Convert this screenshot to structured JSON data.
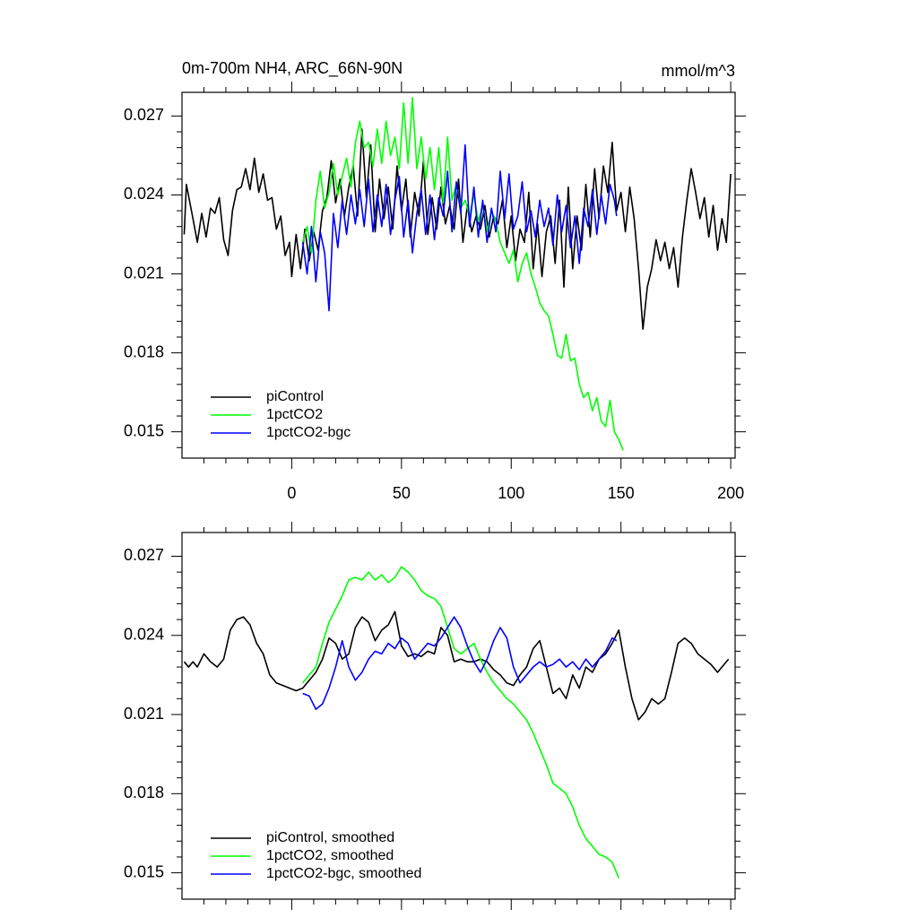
{
  "chart_data": [
    {
      "type": "line",
      "title": "0m-700m NH4, ARC_66N-90N",
      "units": "mmol/m^3",
      "xlim": [
        -50,
        202
      ],
      "xticks": [
        0,
        50,
        100,
        150,
        200
      ],
      "ylim": [
        0.014,
        0.0279
      ],
      "yticks": [
        0.015,
        0.018,
        0.021,
        0.024,
        0.027
      ],
      "legend": "lower left",
      "series": [
        {
          "name": "piControl",
          "color": "#000000",
          "x": [
            -49,
            -48,
            -45,
            -43,
            -41,
            -39,
            -37,
            -35,
            -33,
            -31,
            -29,
            -27,
            -25,
            -23,
            -21,
            -19,
            -17,
            -15,
            -13,
            -11,
            -9,
            -7,
            -5,
            -3,
            -1,
            0,
            2,
            4,
            6,
            8,
            10,
            12,
            14,
            16,
            18,
            20,
            22,
            24,
            26,
            28,
            30,
            32,
            34,
            36,
            38,
            40,
            42,
            44,
            46,
            48,
            50,
            52,
            54,
            56,
            58,
            60,
            62,
            64,
            66,
            68,
            70,
            72,
            74,
            76,
            78,
            80,
            82,
            84,
            86,
            88,
            90,
            92,
            94,
            96,
            98,
            100,
            102,
            104,
            106,
            108,
            110,
            112,
            114,
            116,
            118,
            120,
            122,
            124,
            126,
            128,
            130,
            132,
            134,
            136,
            138,
            140,
            142,
            144,
            146,
            148,
            150,
            152,
            154,
            156,
            158,
            160,
            162,
            164,
            166,
            168,
            170,
            172,
            174,
            176,
            178,
            180,
            182,
            184,
            186,
            188,
            190,
            192,
            194,
            196,
            198,
            200
          ],
          "values": [
            0.0225,
            0.0244,
            0.0231,
            0.0222,
            0.0233,
            0.0224,
            0.0235,
            0.0233,
            0.0239,
            0.0223,
            0.0217,
            0.0234,
            0.0242,
            0.0243,
            0.025,
            0.0242,
            0.0254,
            0.0241,
            0.0248,
            0.0238,
            0.0239,
            0.0227,
            0.0232,
            0.0217,
            0.0222,
            0.0209,
            0.0225,
            0.0212,
            0.0227,
            0.0215,
            0.0226,
            0.0219,
            0.0234,
            0.0239,
            0.0253,
            0.0237,
            0.0246,
            0.0232,
            0.0243,
            0.0251,
            0.0232,
            0.0265,
            0.0239,
            0.0259,
            0.0226,
            0.0246,
            0.0231,
            0.0243,
            0.0227,
            0.0251,
            0.0234,
            0.0246,
            0.0224,
            0.0241,
            0.0232,
            0.0253,
            0.0225,
            0.0239,
            0.0227,
            0.0243,
            0.0229,
            0.0236,
            0.0227,
            0.0246,
            0.0222,
            0.0236,
            0.0226,
            0.0232,
            0.0227,
            0.0236,
            0.0224,
            0.0232,
            0.0229,
            0.0238,
            0.022,
            0.0232,
            0.0215,
            0.0227,
            0.0222,
            0.0241,
            0.0212,
            0.0229,
            0.0209,
            0.0226,
            0.0232,
            0.0214,
            0.0238,
            0.0205,
            0.0243,
            0.0212,
            0.0232,
            0.0219,
            0.0244,
            0.0224,
            0.025,
            0.0231,
            0.0251,
            0.0241,
            0.026,
            0.0234,
            0.0241,
            0.0226,
            0.0243,
            0.0231,
            0.0212,
            0.0189,
            0.0205,
            0.0212,
            0.0223,
            0.0215,
            0.0222,
            0.0212,
            0.022,
            0.0205,
            0.0224,
            0.0238,
            0.025,
            0.0241,
            0.0231,
            0.0239,
            0.0224,
            0.0236,
            0.0219,
            0.0231,
            0.0222,
            0.0248
          ]
        },
        {
          "name": "1pctCO2",
          "color": "#00ff00",
          "x": [
            5,
            7,
            9,
            11,
            13,
            15,
            17,
            19,
            21,
            23,
            25,
            27,
            29,
            31,
            33,
            35,
            37,
            39,
            41,
            43,
            45,
            47,
            49,
            51,
            53,
            55,
            57,
            59,
            61,
            63,
            65,
            67,
            69,
            71,
            73,
            75,
            77,
            79,
            81,
            83,
            85,
            87,
            89,
            91,
            93,
            95,
            97,
            99,
            101,
            103,
            105,
            107,
            109,
            111,
            113,
            115,
            117,
            119,
            121,
            123,
            125,
            127,
            129,
            131,
            133,
            135,
            137,
            139,
            141,
            143,
            145,
            147,
            149,
            151
          ],
          "values": [
            0.0222,
            0.0228,
            0.0218,
            0.0238,
            0.0249,
            0.0235,
            0.0241,
            0.0252,
            0.024,
            0.0247,
            0.0254,
            0.0243,
            0.026,
            0.0268,
            0.0258,
            0.026,
            0.0251,
            0.0265,
            0.0252,
            0.0268,
            0.0255,
            0.0262,
            0.025,
            0.0275,
            0.0252,
            0.0277,
            0.025,
            0.0262,
            0.0246,
            0.0258,
            0.0242,
            0.0258,
            0.0237,
            0.0262,
            0.0238,
            0.0244,
            0.0235,
            0.0238,
            0.0232,
            0.024,
            0.023,
            0.0236,
            0.0226,
            0.0234,
            0.023,
            0.0222,
            0.0218,
            0.0214,
            0.0219,
            0.0207,
            0.0214,
            0.0218,
            0.021,
            0.0205,
            0.0199,
            0.0196,
            0.0194,
            0.0187,
            0.0179,
            0.0178,
            0.0187,
            0.0177,
            0.0178,
            0.0168,
            0.0163,
            0.0165,
            0.0158,
            0.0163,
            0.0154,
            0.0152,
            0.0162,
            0.015,
            0.0147,
            0.0143
          ]
        },
        {
          "name": "1pctCO2-bgc",
          "color": "#0000ff",
          "x": [
            5,
            7,
            9,
            11,
            13,
            15,
            17,
            19,
            21,
            23,
            25,
            27,
            29,
            31,
            33,
            35,
            37,
            39,
            41,
            43,
            45,
            47,
            49,
            51,
            53,
            55,
            57,
            59,
            61,
            63,
            65,
            67,
            69,
            71,
            73,
            75,
            77,
            79,
            81,
            83,
            85,
            87,
            89,
            91,
            93,
            95,
            97,
            99,
            101,
            103,
            105,
            107,
            109,
            111,
            113,
            115,
            117,
            119,
            121,
            123,
            125,
            127,
            129,
            131,
            133,
            135,
            137,
            139,
            141,
            143,
            145,
            147,
            148
          ],
          "values": [
            0.0222,
            0.021,
            0.0228,
            0.0207,
            0.0226,
            0.0218,
            0.0196,
            0.0233,
            0.022,
            0.0238,
            0.0225,
            0.024,
            0.0229,
            0.0242,
            0.0228,
            0.0246,
            0.0226,
            0.024,
            0.0228,
            0.0244,
            0.0225,
            0.0238,
            0.0247,
            0.0224,
            0.0238,
            0.0218,
            0.0233,
            0.0242,
            0.0225,
            0.024,
            0.0223,
            0.0239,
            0.0232,
            0.0249,
            0.0226,
            0.0245,
            0.0233,
            0.0259,
            0.0228,
            0.0243,
            0.0224,
            0.0238,
            0.0222,
            0.0235,
            0.0226,
            0.0249,
            0.0231,
            0.0248,
            0.0227,
            0.0232,
            0.0245,
            0.0226,
            0.0234,
            0.0224,
            0.0238,
            0.0228,
            0.0235,
            0.0221,
            0.024,
            0.0226,
            0.0236,
            0.022,
            0.0232,
            0.0214,
            0.0235,
            0.0228,
            0.0242,
            0.0225,
            0.024,
            0.0229,
            0.0244,
            0.0238,
            0.0232
          ]
        }
      ]
    },
    {
      "type": "line",
      "xlim": [
        -50,
        202
      ],
      "ylim": [
        0.014,
        0.0279
      ],
      "yticks": [
        0.015,
        0.018,
        0.021,
        0.024,
        0.027
      ],
      "legend": "lower left",
      "series": [
        {
          "name": "piControl, smoothed",
          "color": "#000000",
          "x": [
            -49,
            -47,
            -45,
            -43,
            -40,
            -37,
            -34,
            -31,
            -28,
            -25,
            -22,
            -19,
            -16,
            -13,
            -10,
            -7,
            -4,
            -1,
            2,
            5,
            8,
            11,
            14,
            17,
            20,
            23,
            26,
            29,
            32,
            35,
            38,
            41,
            44,
            47,
            50,
            53,
            56,
            59,
            62,
            65,
            68,
            71,
            74,
            77,
            80,
            83,
            86,
            89,
            92,
            95,
            98,
            101,
            104,
            107,
            110,
            113,
            116,
            119,
            122,
            125,
            128,
            131,
            134,
            137,
            140,
            143,
            146,
            149,
            152,
            155,
            158,
            161,
            164,
            167,
            170,
            173,
            176,
            179,
            182,
            185,
            188,
            191,
            194,
            197,
            199
          ],
          "values": [
            0.023,
            0.0228,
            0.023,
            0.0228,
            0.0233,
            0.023,
            0.0228,
            0.0231,
            0.0242,
            0.0246,
            0.0247,
            0.0244,
            0.0237,
            0.0233,
            0.0225,
            0.0222,
            0.0221,
            0.022,
            0.0219,
            0.022,
            0.0223,
            0.0226,
            0.0231,
            0.0239,
            0.0237,
            0.0231,
            0.0233,
            0.0243,
            0.0247,
            0.0245,
            0.0238,
            0.0242,
            0.0244,
            0.0249,
            0.0236,
            0.0232,
            0.0233,
            0.0232,
            0.0234,
            0.0233,
            0.0243,
            0.024,
            0.023,
            0.0231,
            0.023,
            0.023,
            0.0231,
            0.023,
            0.0227,
            0.0225,
            0.0222,
            0.0221,
            0.0225,
            0.0228,
            0.0235,
            0.0238,
            0.0228,
            0.0218,
            0.022,
            0.0216,
            0.0225,
            0.022,
            0.0228,
            0.0226,
            0.0231,
            0.0233,
            0.0237,
            0.0242,
            0.0228,
            0.0216,
            0.0208,
            0.0211,
            0.0216,
            0.0214,
            0.0216,
            0.0226,
            0.0237,
            0.0239,
            0.0237,
            0.0233,
            0.0231,
            0.0229,
            0.0226,
            0.0229,
            0.0231
          ]
        },
        {
          "name": "1pctCO2, smoothed",
          "color": "#00ff00",
          "x": [
            5,
            8,
            11,
            14,
            17,
            20,
            23,
            26,
            29,
            32,
            35,
            38,
            41,
            44,
            47,
            50,
            53,
            56,
            59,
            62,
            65,
            68,
            71,
            74,
            77,
            80,
            83,
            86,
            89,
            92,
            95,
            98,
            101,
            104,
            107,
            110,
            113,
            116,
            119,
            122,
            125,
            128,
            131,
            134,
            137,
            140,
            143,
            146,
            149
          ],
          "values": [
            0.0222,
            0.0225,
            0.0228,
            0.0237,
            0.0245,
            0.025,
            0.0255,
            0.0261,
            0.0262,
            0.0261,
            0.0264,
            0.0261,
            0.0263,
            0.026,
            0.0262,
            0.0266,
            0.0264,
            0.0261,
            0.0257,
            0.0255,
            0.0254,
            0.0251,
            0.0243,
            0.0235,
            0.0233,
            0.0235,
            0.0237,
            0.0231,
            0.0226,
            0.0222,
            0.0219,
            0.0216,
            0.0214,
            0.0211,
            0.0208,
            0.0203,
            0.0197,
            0.0191,
            0.0184,
            0.0182,
            0.018,
            0.0175,
            0.0168,
            0.0163,
            0.016,
            0.0157,
            0.0156,
            0.0154,
            0.0148
          ]
        },
        {
          "name": "1pctCO2-bgc, smoothed",
          "color": "#0000ff",
          "x": [
            5,
            8,
            11,
            14,
            17,
            20,
            23,
            26,
            29,
            32,
            35,
            38,
            41,
            44,
            47,
            50,
            53,
            56,
            59,
            62,
            65,
            68,
            71,
            74,
            77,
            80,
            83,
            86,
            89,
            92,
            95,
            98,
            101,
            104,
            107,
            110,
            113,
            116,
            119,
            122,
            125,
            128,
            131,
            134,
            137,
            140,
            143,
            146,
            148
          ],
          "values": [
            0.0218,
            0.0217,
            0.0212,
            0.0214,
            0.022,
            0.0228,
            0.0238,
            0.0228,
            0.0223,
            0.0226,
            0.0231,
            0.0234,
            0.0233,
            0.0237,
            0.0235,
            0.0239,
            0.0237,
            0.0231,
            0.0234,
            0.0237,
            0.0236,
            0.0239,
            0.0243,
            0.0247,
            0.0243,
            0.0236,
            0.023,
            0.0226,
            0.0231,
            0.0238,
            0.0243,
            0.0239,
            0.0228,
            0.0222,
            0.0225,
            0.0228,
            0.023,
            0.0228,
            0.0229,
            0.0231,
            0.0228,
            0.023,
            0.0227,
            0.0231,
            0.0228,
            0.0231,
            0.0234,
            0.0239,
            0.0238
          ]
        }
      ]
    }
  ]
}
